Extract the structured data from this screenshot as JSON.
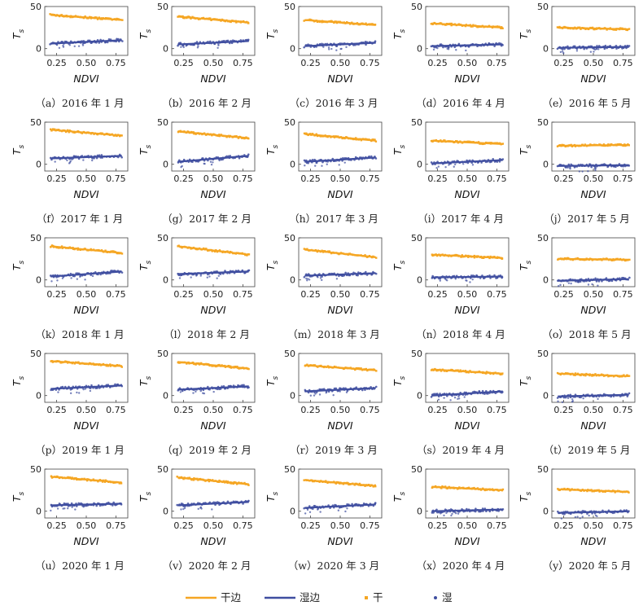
{
  "chart_data": {
    "type": "scatter",
    "rows": 5,
    "cols": 5,
    "xlabel": "NDVI",
    "ylabel": "T",
    "ylabel_sub": "s",
    "xlim": [
      0.15,
      0.85
    ],
    "ylim": [
      -8,
      50
    ],
    "xticks": [
      0.25,
      0.5,
      0.75
    ],
    "xtick_labels": [
      "0.25",
      "0.50",
      "0.75"
    ],
    "yticks": [
      0,
      50
    ],
    "ytick_labels": [
      "0",
      "50"
    ],
    "colors": {
      "dry": "#f5a623",
      "wet": "#3f4ea0"
    },
    "legend": {
      "placement": "bottom-center",
      "items": [
        {
          "label": "干边",
          "kind": "line",
          "key": "dry"
        },
        {
          "label": "湿边",
          "kind": "line",
          "key": "wet"
        },
        {
          "label": "干",
          "kind": "point",
          "key": "dry"
        },
        {
          "label": "湿",
          "kind": "point",
          "key": "wet"
        }
      ]
    },
    "panels": [
      {
        "caption": "（a）2016 年 1 月",
        "dry_edge": [
          40,
          34
        ],
        "wet_edge": [
          6,
          10
        ]
      },
      {
        "caption": "（b）2016 年 2 月",
        "dry_edge": [
          38,
          31
        ],
        "wet_edge": [
          5,
          9
        ]
      },
      {
        "caption": "（c）2016 年 3 月",
        "dry_edge": [
          34,
          28
        ],
        "wet_edge": [
          3,
          7
        ]
      },
      {
        "caption": "（d）2016 年 4 月",
        "dry_edge": [
          30,
          25
        ],
        "wet_edge": [
          3,
          5
        ]
      },
      {
        "caption": "（e）2016 年 5 月",
        "dry_edge": [
          25,
          23
        ],
        "wet_edge": [
          1,
          2
        ]
      },
      {
        "caption": "（f）2017 年 1 月",
        "dry_edge": [
          41,
          34
        ],
        "wet_edge": [
          7,
          10
        ]
      },
      {
        "caption": "（g）2017 年 2 月",
        "dry_edge": [
          39,
          31
        ],
        "wet_edge": [
          3,
          10
        ]
      },
      {
        "caption": "（h）2017 年 3 月",
        "dry_edge": [
          36,
          28
        ],
        "wet_edge": [
          3,
          8
        ]
      },
      {
        "caption": "（i）2017 年 4 月",
        "dry_edge": [
          28,
          24
        ],
        "wet_edge": [
          1,
          5
        ]
      },
      {
        "caption": "（j）2017 年 5 月",
        "dry_edge": [
          22,
          23
        ],
        "wet_edge": [
          -2,
          -1
        ]
      },
      {
        "caption": "（k）2018 年 1 月",
        "dry_edge": [
          40,
          32
        ],
        "wet_edge": [
          4,
          10
        ]
      },
      {
        "caption": "（l）2018 年 2 月",
        "dry_edge": [
          40,
          30
        ],
        "wet_edge": [
          7,
          10
        ]
      },
      {
        "caption": "（m）2018 年 3 月",
        "dry_edge": [
          36,
          27
        ],
        "wet_edge": [
          5,
          8
        ]
      },
      {
        "caption": "（n）2018 年 4 月",
        "dry_edge": [
          30,
          26
        ],
        "wet_edge": [
          3,
          4
        ]
      },
      {
        "caption": "（o）2018 年 5 月",
        "dry_edge": [
          25,
          24
        ],
        "wet_edge": [
          -1,
          1
        ]
      },
      {
        "caption": "（p）2019 年 1 月",
        "dry_edge": [
          41,
          35
        ],
        "wet_edge": [
          8,
          12
        ]
      },
      {
        "caption": "（q）2019 年 2 月",
        "dry_edge": [
          40,
          32
        ],
        "wet_edge": [
          7,
          11
        ]
      },
      {
        "caption": "（r）2019 年 3 月",
        "dry_edge": [
          36,
          30
        ],
        "wet_edge": [
          5,
          9
        ]
      },
      {
        "caption": "（s）2019 年 4 月",
        "dry_edge": [
          31,
          26
        ],
        "wet_edge": [
          0,
          5
        ]
      },
      {
        "caption": "（t）2019 年 5 月",
        "dry_edge": [
          26,
          23
        ],
        "wet_edge": [
          -1,
          1
        ]
      },
      {
        "caption": "（u）2020 年 1 月",
        "dry_edge": [
          41,
          34
        ],
        "wet_edge": [
          7,
          9
        ]
      },
      {
        "caption": "（v）2020 年 2 月",
        "dry_edge": [
          40,
          32
        ],
        "wet_edge": [
          7,
          11
        ]
      },
      {
        "caption": "（w）2020 年 3 月",
        "dry_edge": [
          37,
          30
        ],
        "wet_edge": [
          4,
          8
        ]
      },
      {
        "caption": "（x）2020 年 4 月",
        "dry_edge": [
          29,
          25
        ],
        "wet_edge": [
          0,
          2
        ]
      },
      {
        "caption": "（y）2020 年 5 月",
        "dry_edge": [
          26,
          23
        ],
        "wet_edge": [
          -2,
          0
        ]
      }
    ]
  }
}
